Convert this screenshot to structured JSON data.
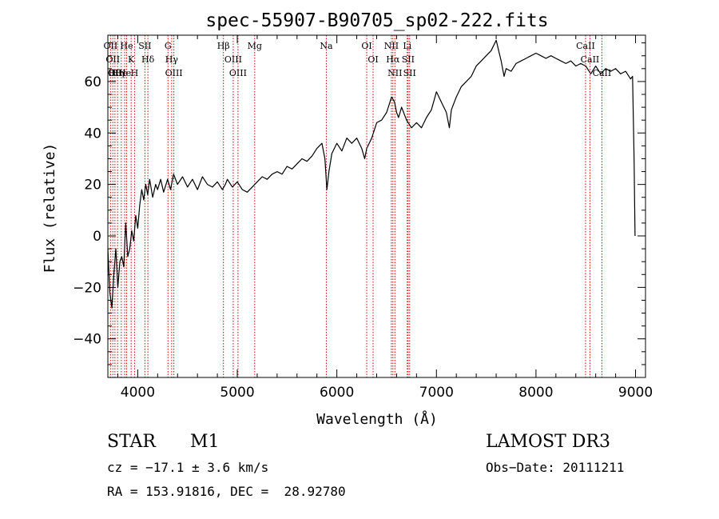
{
  "chart_data": {
    "type": "line",
    "title": "spec-55907-B90705_sp02-222.fits",
    "xlabel": "Wavelength (Å)",
    "ylabel": "Flux (relative)",
    "xlim": [
      3700,
      9100
    ],
    "ylim": [
      -55,
      78
    ],
    "xticks": [
      4000,
      5000,
      6000,
      7000,
      8000,
      9000
    ],
    "yticks": [
      -40,
      -20,
      0,
      20,
      40,
      60
    ],
    "grid": false,
    "series": [
      {
        "points": [
          [
            3700,
            -5
          ],
          [
            3720,
            -22
          ],
          [
            3740,
            -28
          ],
          [
            3760,
            -15
          ],
          [
            3780,
            -5
          ],
          [
            3800,
            -20
          ],
          [
            3820,
            -10
          ],
          [
            3840,
            -8
          ],
          [
            3860,
            -12
          ],
          [
            3880,
            5
          ],
          [
            3900,
            -8
          ],
          [
            3920,
            -5
          ],
          [
            3940,
            2
          ],
          [
            3960,
            -2
          ],
          [
            3980,
            8
          ],
          [
            4000,
            3
          ],
          [
            4020,
            12
          ],
          [
            4040,
            18
          ],
          [
            4060,
            14
          ],
          [
            4080,
            20
          ],
          [
            4100,
            16
          ],
          [
            4120,
            22
          ],
          [
            4150,
            15
          ],
          [
            4180,
            20
          ],
          [
            4200,
            18
          ],
          [
            4230,
            22
          ],
          [
            4260,
            17
          ],
          [
            4300,
            22
          ],
          [
            4330,
            18
          ],
          [
            4360,
            24
          ],
          [
            4400,
            20
          ],
          [
            4450,
            23
          ],
          [
            4500,
            19
          ],
          [
            4550,
            22
          ],
          [
            4600,
            18
          ],
          [
            4650,
            23
          ],
          [
            4700,
            20
          ],
          [
            4750,
            19
          ],
          [
            4800,
            21
          ],
          [
            4850,
            18
          ],
          [
            4880,
            20
          ],
          [
            4900,
            22
          ],
          [
            4950,
            19
          ],
          [
            5000,
            21
          ],
          [
            5050,
            18
          ],
          [
            5100,
            17
          ],
          [
            5150,
            19
          ],
          [
            5200,
            21
          ],
          [
            5250,
            23
          ],
          [
            5300,
            22
          ],
          [
            5350,
            24
          ],
          [
            5400,
            25
          ],
          [
            5450,
            24
          ],
          [
            5500,
            27
          ],
          [
            5550,
            26
          ],
          [
            5600,
            28
          ],
          [
            5650,
            30
          ],
          [
            5700,
            29
          ],
          [
            5750,
            31
          ],
          [
            5800,
            34
          ],
          [
            5850,
            36
          ],
          [
            5880,
            30
          ],
          [
            5900,
            18
          ],
          [
            5920,
            25
          ],
          [
            5950,
            32
          ],
          [
            6000,
            36
          ],
          [
            6050,
            33
          ],
          [
            6100,
            38
          ],
          [
            6150,
            36
          ],
          [
            6200,
            38
          ],
          [
            6250,
            34
          ],
          [
            6280,
            30
          ],
          [
            6300,
            34
          ],
          [
            6350,
            38
          ],
          [
            6400,
            44
          ],
          [
            6450,
            45
          ],
          [
            6500,
            48
          ],
          [
            6550,
            54
          ],
          [
            6580,
            52
          ],
          [
            6600,
            48
          ],
          [
            6620,
            46
          ],
          [
            6650,
            50
          ],
          [
            6700,
            45
          ],
          [
            6750,
            42
          ],
          [
            6800,
            44
          ],
          [
            6850,
            42
          ],
          [
            6900,
            46
          ],
          [
            6950,
            49
          ],
          [
            7000,
            56
          ],
          [
            7050,
            52
          ],
          [
            7100,
            48
          ],
          [
            7130,
            42
          ],
          [
            7150,
            49
          ],
          [
            7200,
            54
          ],
          [
            7250,
            58
          ],
          [
            7300,
            60
          ],
          [
            7350,
            62
          ],
          [
            7400,
            66
          ],
          [
            7450,
            68
          ],
          [
            7500,
            70
          ],
          [
            7550,
            72
          ],
          [
            7600,
            76
          ],
          [
            7650,
            68
          ],
          [
            7680,
            62
          ],
          [
            7700,
            65
          ],
          [
            7750,
            64
          ],
          [
            7800,
            67
          ],
          [
            7850,
            68
          ],
          [
            7900,
            69
          ],
          [
            7950,
            70
          ],
          [
            8000,
            71
          ],
          [
            8050,
            70
          ],
          [
            8100,
            69
          ],
          [
            8150,
            70
          ],
          [
            8200,
            69
          ],
          [
            8250,
            68
          ],
          [
            8300,
            67
          ],
          [
            8350,
            68
          ],
          [
            8400,
            66
          ],
          [
            8450,
            67
          ],
          [
            8500,
            66
          ],
          [
            8550,
            63
          ],
          [
            8600,
            66
          ],
          [
            8650,
            63
          ],
          [
            8700,
            65
          ],
          [
            8750,
            64
          ],
          [
            8800,
            65
          ],
          [
            8850,
            63
          ],
          [
            8900,
            64
          ],
          [
            8950,
            61
          ],
          [
            8970,
            62
          ],
          [
            8985,
            30
          ],
          [
            8995,
            0
          ]
        ]
      }
    ],
    "lines": [
      {
        "x": 3727,
        "labels": [
          "OII"
        ]
      },
      {
        "x": 3750,
        "labels": [
          "OII"
        ]
      },
      {
        "x": 3771,
        "labels": [
          "Hθ",
          "OII"
        ]
      },
      {
        "x": 3798,
        "labels": [
          "Hη"
        ]
      },
      {
        "x": 3835,
        "labels": [
          "He"
        ]
      },
      {
        "x": 3869,
        "labels": [
          "He"
        ]
      },
      {
        "x": 3889,
        "labels": [
          "He"
        ]
      },
      {
        "x": 3934,
        "labels": [
          "K"
        ]
      },
      {
        "x": 3968,
        "labels": [
          "H"
        ]
      },
      {
        "x": 4072,
        "labels": [
          "SII"
        ]
      },
      {
        "x": 4102,
        "labels": [
          "Hδ"
        ]
      },
      {
        "x": 4304,
        "labels": [
          "G"
        ]
      },
      {
        "x": 4341,
        "labels": [
          "Hγ"
        ]
      },
      {
        "x": 4363,
        "labels": [
          "OIII"
        ]
      },
      {
        "x": 4861,
        "labels": [
          "Hβ"
        ]
      },
      {
        "x": 4959,
        "labels": [
          "OIII"
        ]
      },
      {
        "x": 5007,
        "labels": [
          "OIII"
        ]
      },
      {
        "x": 5175,
        "labels": [
          "Mg"
        ]
      },
      {
        "x": 5894,
        "labels": [
          "Na"
        ]
      },
      {
        "x": 6300,
        "labels": [
          "OI"
        ]
      },
      {
        "x": 6364,
        "labels": [
          "OI"
        ]
      },
      {
        "x": 6548,
        "labels": [
          "NII"
        ]
      },
      {
        "x": 6563,
        "labels": [
          "Hα"
        ]
      },
      {
        "x": 6583,
        "labels": [
          "NII"
        ]
      },
      {
        "x": 6707,
        "labels": [
          "Li"
        ]
      },
      {
        "x": 6716,
        "labels": [
          "SII"
        ]
      },
      {
        "x": 6731,
        "labels": [
          "SII"
        ]
      },
      {
        "x": 8498,
        "labels": [
          "CaII"
        ]
      },
      {
        "x": 8542,
        "labels": [
          "CaII"
        ]
      },
      {
        "x": 8662,
        "labels": [
          "CaII"
        ]
      }
    ]
  },
  "info": {
    "class": "STAR",
    "subclass": "M1",
    "survey": "LAMOST DR3",
    "cz": "cz = −17.1 ± 3.6 km/s",
    "obs_date": "Obs−Date: 20111211",
    "coords": "RA = 153.91816, DEC =  28.92780"
  },
  "colors": {
    "spectrum": "#000000",
    "line_markers": "#cc0000",
    "axes": "#000000"
  }
}
